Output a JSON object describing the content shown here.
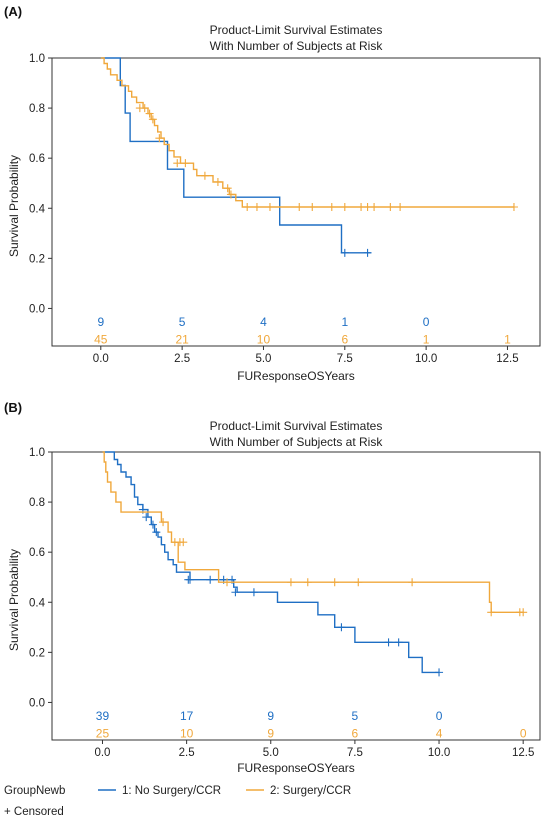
{
  "legend": {
    "title": "GroupNewb",
    "censored": "+ Censored"
  },
  "colors": {
    "group1": "#1f6fc4",
    "group2": "#f0a83c"
  },
  "chart_data": [
    {
      "type": "line",
      "panel_label": "(A)",
      "title": "Product-Limit Survival Estimates",
      "subtitle": "With Number of Subjects at Risk",
      "xlabel": "FUResponseOSYears",
      "ylabel": "Survival Probability",
      "xlim": [
        -1.5,
        13.5
      ],
      "ylim": [
        -0.15,
        1.0
      ],
      "xticks": [
        "0.0",
        "2.5",
        "5.0",
        "7.5",
        "10.0",
        "12.5"
      ],
      "xtick_values": [
        0,
        2.5,
        5,
        7.5,
        10,
        12.5
      ],
      "yticks": [
        "0.0",
        "0.2",
        "0.4",
        "0.6",
        "0.8",
        "1.0"
      ],
      "ytick_values": [
        0,
        0.2,
        0.4,
        0.6,
        0.8,
        1.0
      ],
      "grid": false,
      "series": [
        {
          "name": "1: No Surgery/CCR",
          "color_key": "group1",
          "steps": [
            [
              0,
              1.0
            ],
            [
              0.6,
              0.89
            ],
            [
              0.75,
              0.78
            ],
            [
              0.9,
              0.667
            ],
            [
              2.05,
              0.556
            ],
            [
              2.55,
              0.444
            ],
            [
              5.5,
              0.333
            ],
            [
              7.4,
              0.222
            ],
            [
              8.3,
              0.222
            ]
          ],
          "censored": [
            [
              7.5,
              0.222
            ],
            [
              8.2,
              0.222
            ]
          ],
          "at_risk": [
            9,
            5,
            4,
            1,
            0
          ]
        },
        {
          "name": "2: Surgery/CCR",
          "color_key": "group2",
          "steps": [
            [
              0,
              1.0
            ],
            [
              0.1,
              0.978
            ],
            [
              0.2,
              0.956
            ],
            [
              0.3,
              0.933
            ],
            [
              0.5,
              0.911
            ],
            [
              0.65,
              0.889
            ],
            [
              0.85,
              0.867
            ],
            [
              0.95,
              0.844
            ],
            [
              1.1,
              0.822
            ],
            [
              1.3,
              0.8
            ],
            [
              1.45,
              0.778
            ],
            [
              1.55,
              0.755
            ],
            [
              1.65,
              0.73
            ],
            [
              1.75,
              0.705
            ],
            [
              1.85,
              0.68
            ],
            [
              1.95,
              0.655
            ],
            [
              2.1,
              0.63
            ],
            [
              2.25,
              0.605
            ],
            [
              2.45,
              0.58
            ],
            [
              2.85,
              0.555
            ],
            [
              2.95,
              0.53
            ],
            [
              3.45,
              0.505
            ],
            [
              3.75,
              0.48
            ],
            [
              3.95,
              0.455
            ],
            [
              4.15,
              0.43
            ],
            [
              4.35,
              0.405
            ],
            [
              12.7,
              0.405
            ]
          ],
          "censored": [
            [
              1.2,
              0.8
            ],
            [
              1.35,
              0.8
            ],
            [
              1.5,
              0.778
            ],
            [
              1.6,
              0.755
            ],
            [
              1.8,
              0.68
            ],
            [
              2.35,
              0.58
            ],
            [
              2.6,
              0.58
            ],
            [
              3.2,
              0.53
            ],
            [
              3.6,
              0.505
            ],
            [
              3.9,
              0.48
            ],
            [
              4.0,
              0.455
            ],
            [
              4.5,
              0.405
            ],
            [
              4.8,
              0.405
            ],
            [
              5.2,
              0.405
            ],
            [
              6.1,
              0.405
            ],
            [
              6.5,
              0.405
            ],
            [
              7.1,
              0.405
            ],
            [
              7.5,
              0.405
            ],
            [
              8.0,
              0.405
            ],
            [
              8.2,
              0.405
            ],
            [
              8.4,
              0.405
            ],
            [
              8.9,
              0.405
            ],
            [
              9.2,
              0.405
            ],
            [
              12.7,
              0.405
            ]
          ],
          "at_risk": [
            45,
            21,
            10,
            6,
            1,
            1
          ]
        }
      ]
    },
    {
      "type": "line",
      "panel_label": "(B)",
      "title": "Product-Limit Survival Estimates",
      "subtitle": "With Number of Subjects at Risk",
      "xlabel": "FUResponseOSYears",
      "ylabel": "Survival Probability",
      "xlim": [
        -1.5,
        13.0
      ],
      "ylim": [
        -0.15,
        1.0
      ],
      "xticks": [
        "0.0",
        "2.5",
        "5.0",
        "7.5",
        "10.0",
        "12.5"
      ],
      "xtick_values": [
        0,
        2.5,
        5,
        7.5,
        10,
        12.5
      ],
      "yticks": [
        "0.0",
        "0.2",
        "0.4",
        "0.6",
        "0.8",
        "1.0"
      ],
      "ytick_values": [
        0,
        0.2,
        0.4,
        0.6,
        0.8,
        1.0
      ],
      "grid": false,
      "series": [
        {
          "name": "1: No Surgery/CCR",
          "color_key": "group1",
          "steps": [
            [
              0,
              1.0
            ],
            [
              0.35,
              0.97
            ],
            [
              0.45,
              0.95
            ],
            [
              0.55,
              0.92
            ],
            [
              0.7,
              0.9
            ],
            [
              0.85,
              0.87
            ],
            [
              0.95,
              0.82
            ],
            [
              1.05,
              0.79
            ],
            [
              1.2,
              0.77
            ],
            [
              1.35,
              0.74
            ],
            [
              1.45,
              0.71
            ],
            [
              1.55,
              0.68
            ],
            [
              1.65,
              0.66
            ],
            [
              1.75,
              0.63
            ],
            [
              1.85,
              0.6
            ],
            [
              1.95,
              0.57
            ],
            [
              2.1,
              0.55
            ],
            [
              2.2,
              0.52
            ],
            [
              2.6,
              0.49
            ],
            [
              3.9,
              0.46
            ],
            [
              4.0,
              0.44
            ],
            [
              5.2,
              0.4
            ],
            [
              6.4,
              0.35
            ],
            [
              6.9,
              0.3
            ],
            [
              7.5,
              0.24
            ],
            [
              9.1,
              0.18
            ],
            [
              9.5,
              0.12
            ],
            [
              10.0,
              0.12
            ]
          ],
          "censored": [
            [
              1.2,
              0.77
            ],
            [
              1.3,
              0.74
            ],
            [
              1.5,
              0.71
            ],
            [
              1.6,
              0.68
            ],
            [
              2.55,
              0.49
            ],
            [
              2.6,
              0.49
            ],
            [
              3.2,
              0.49
            ],
            [
              3.6,
              0.49
            ],
            [
              3.85,
              0.49
            ],
            [
              3.95,
              0.44
            ],
            [
              4.5,
              0.44
            ],
            [
              7.1,
              0.3
            ],
            [
              8.5,
              0.24
            ],
            [
              8.8,
              0.24
            ],
            [
              10.0,
              0.12
            ]
          ],
          "at_risk": [
            39,
            17,
            9,
            5,
            0
          ]
        },
        {
          "name": "2: Surgery/CCR",
          "color_key": "group2",
          "steps": [
            [
              0,
              1.0
            ],
            [
              0.05,
              0.96
            ],
            [
              0.1,
              0.92
            ],
            [
              0.15,
              0.88
            ],
            [
              0.25,
              0.84
            ],
            [
              0.4,
              0.8
            ],
            [
              0.55,
              0.76
            ],
            [
              1.75,
              0.72
            ],
            [
              1.95,
              0.68
            ],
            [
              2.05,
              0.64
            ],
            [
              2.25,
              0.56
            ],
            [
              2.45,
              0.53
            ],
            [
              3.45,
              0.48
            ],
            [
              11.5,
              0.4
            ],
            [
              11.55,
              0.36
            ],
            [
              12.5,
              0.36
            ]
          ],
          "censored": [
            [
              1.8,
              0.72
            ],
            [
              2.15,
              0.64
            ],
            [
              2.3,
              0.64
            ],
            [
              2.4,
              0.64
            ],
            [
              3.7,
              0.48
            ],
            [
              5.6,
              0.48
            ],
            [
              6.1,
              0.48
            ],
            [
              6.9,
              0.48
            ],
            [
              7.6,
              0.48
            ],
            [
              9.2,
              0.48
            ],
            [
              11.55,
              0.36
            ],
            [
              12.4,
              0.36
            ],
            [
              12.5,
              0.36
            ]
          ],
          "at_risk": [
            25,
            10,
            9,
            6,
            4,
            0
          ]
        }
      ]
    }
  ]
}
